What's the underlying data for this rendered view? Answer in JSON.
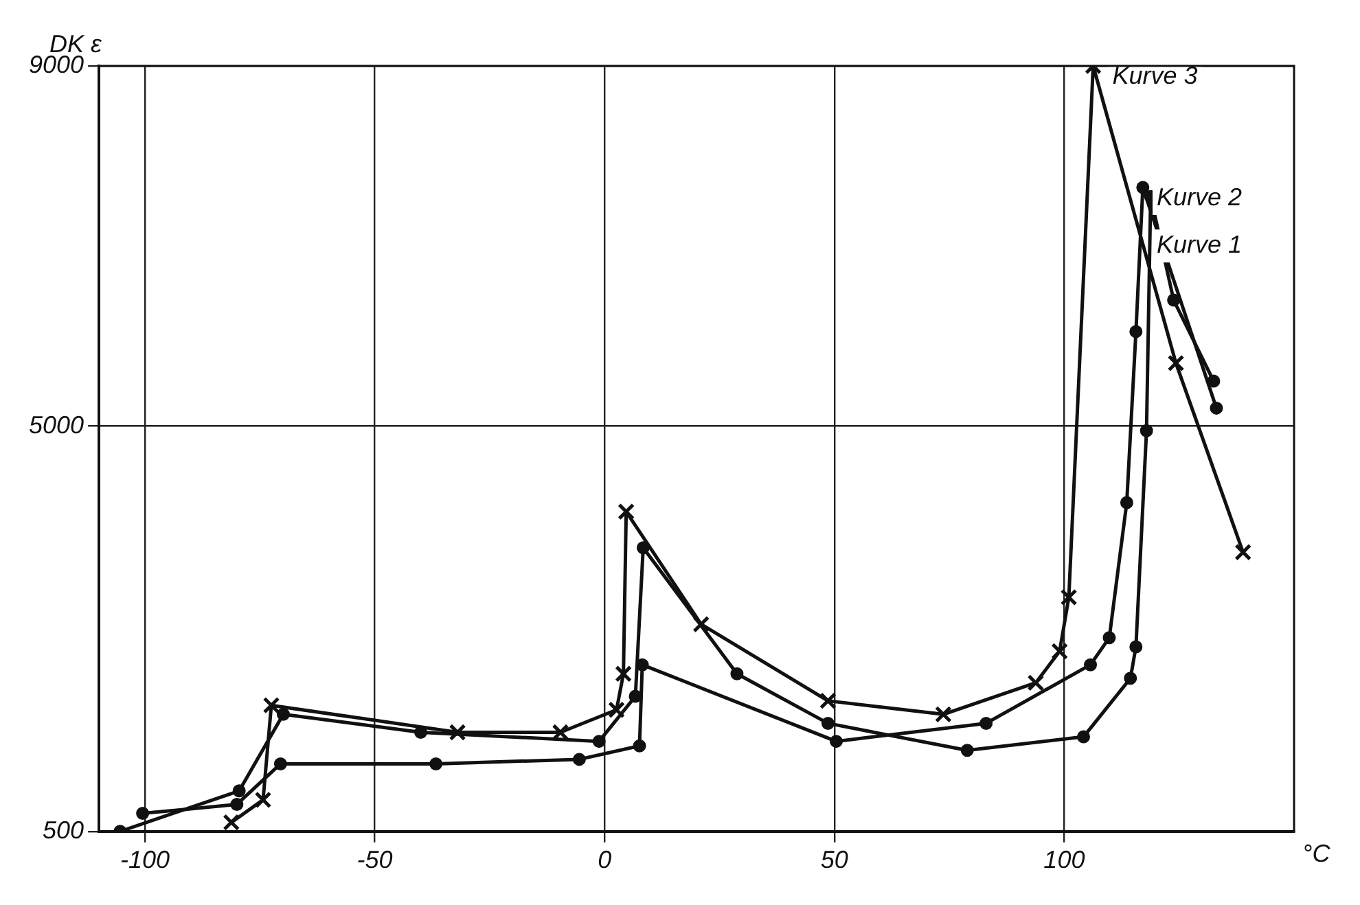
{
  "chart_data": {
    "type": "line",
    "xlabel": "°C",
    "ylabel": "DK ε",
    "xlim": [
      -110,
      150
    ],
    "xticks": [
      -100,
      -50,
      0,
      50,
      100
    ],
    "ylim": [
      500,
      9000
    ],
    "yticks": [
      500,
      5000,
      9000
    ],
    "grid": true,
    "line_style": "solid",
    "series": [
      {
        "name": "Kurve 1",
        "color": "#111111",
        "marker": "circle",
        "x": [
          -105.4,
          -79.5,
          -69.9,
          -40,
          -1.2,
          6.7,
          8.4,
          28.8,
          48.6,
          78.9,
          104.2,
          114.4,
          115.6,
          117.9,
          118.8,
          123.8,
          132.5
        ],
        "values": [
          500,
          950,
          1800,
          1600,
          1500,
          2000,
          3650,
          2250,
          1700,
          1400,
          1550,
          2200,
          2550,
          4950,
          7550,
          6400,
          5500
        ]
      },
      {
        "name": "Kurve 2",
        "color": "#111111",
        "marker": "circle",
        "x": [
          -100.5,
          -80,
          -70.5,
          -36.7,
          -5.5,
          7.6,
          8.2,
          50.4,
          83,
          105.7,
          109.8,
          113.6,
          115.6,
          117.1,
          133.1
        ],
        "values": [
          700,
          800,
          1250,
          1250,
          1300,
          1450,
          2350,
          1500,
          1700,
          2350,
          2650,
          4150,
          6050,
          7650,
          5200
        ]
      },
      {
        "name": "Kurve 3",
        "color": "#111111",
        "marker": "cross",
        "x": [
          -81.2,
          -74.3,
          -72.5,
          -32,
          -9.6,
          2.6,
          4.1,
          4.7,
          21,
          48.6,
          73.7,
          93.8,
          99,
          101,
          106.3,
          124.3,
          138.9
        ],
        "values": [
          600,
          850,
          1900,
          1600,
          1600,
          1850,
          2250,
          4050,
          2800,
          1950,
          1800,
          2150,
          2500,
          3100,
          9000,
          5700,
          3600
        ]
      }
    ]
  }
}
